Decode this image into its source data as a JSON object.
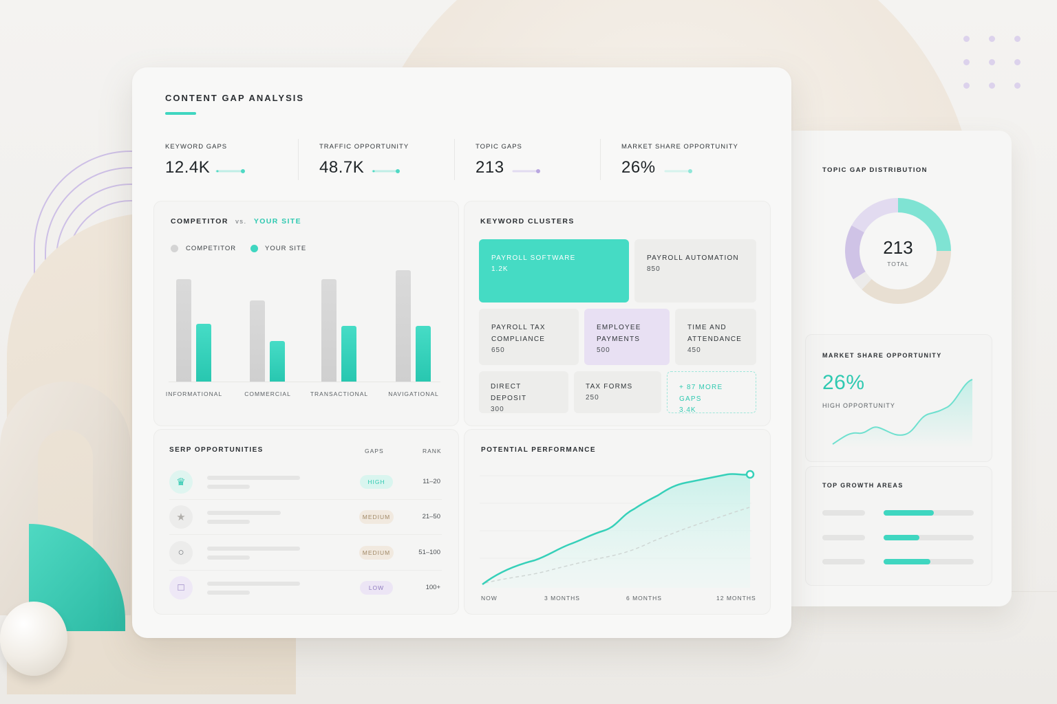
{
  "panel_title": "CONTENT GAP ANALYSIS",
  "kpis": [
    {
      "label": "KEYWORD GAPS",
      "value": "12.4K",
      "color": "#9fe8dc",
      "dot": "#4fd9c4"
    },
    {
      "label": "TRAFFIC OPPORTUNITY",
      "value": "48.7K",
      "color": "#9fe8dc",
      "dot": "#4fd9c4"
    },
    {
      "label": "TOPIC GAPS",
      "value": "213",
      "color": "#dcd2ef",
      "dot": "#b9a7e0"
    },
    {
      "label": "MARKET SHARE OPPORTUNITY",
      "value": "26%",
      "color": "#bfeee6",
      "dot": "#6fe0cf"
    }
  ],
  "competitor_chart": {
    "title_left": "COMPETITOR",
    "title_vs": "vs.",
    "title_right": "YOUR SITE",
    "legend_competitor": "COMPETITOR",
    "legend_your_site": "YOUR SITE",
    "competitor_color": "#d4d4d4",
    "your_site_color": "#3fd6c0"
  },
  "chart_data": {
    "type": "bar",
    "categories": [
      "INFORMATIONAL",
      "COMMERCIAL",
      "TRANSACTIONAL",
      "NAVIGATIONAL"
    ],
    "series": [
      {
        "name": "COMPETITOR",
        "values": [
          145,
          115,
          145,
          157
        ]
      },
      {
        "name": "YOUR SITE",
        "values": [
          82,
          57,
          79,
          79
        ]
      }
    ],
    "ylim": [
      0,
      165
    ]
  },
  "keyword_clusters": {
    "title": "KEYWORD CLUSTERS",
    "tiles": [
      {
        "name": "PAYROLL SOFTWARE",
        "value": "1.2K",
        "style": "teal"
      },
      {
        "name": "PAYROLL AUTOMATION",
        "value": "850",
        "style": "grey"
      },
      {
        "name": "PAYROLL TAX COMPLIANCE",
        "value": "650",
        "style": "grey"
      },
      {
        "name": "EMPLOYEE PAYMENTS",
        "value": "500",
        "style": "lav"
      },
      {
        "name": "TIME AND ATTENDANCE",
        "value": "450",
        "style": "grey"
      },
      {
        "name": "DIRECT DEPOSIT",
        "value": "300",
        "style": "grey"
      },
      {
        "name": "TAX FORMS",
        "value": "250",
        "style": "grey"
      },
      {
        "name": "+ 87 MORE GAPS",
        "value": "3.4K",
        "style": "dash"
      }
    ]
  },
  "serp": {
    "title": "SERP OPPORTUNITIES",
    "col_gaps": "GAPS",
    "col_rank": "RANK",
    "rows": [
      {
        "icon": "crown-icon",
        "gaps": "HIGH",
        "rank": "11–20",
        "badge_bg": "#d9f5ef",
        "badge_fg": "#2fc9b1",
        "icon_bg": "#dff5f0",
        "icon_fg": "#2fc9b1"
      },
      {
        "icon": "star-icon",
        "gaps": "MEDIUM",
        "rank": "21–50",
        "badge_bg": "#f1e9df",
        "badge_fg": "#a08866",
        "icon_bg": "#ececeb",
        "icon_fg": "#b0aeaa"
      },
      {
        "icon": "circle-icon",
        "gaps": "MEDIUM",
        "rank": "51–100",
        "badge_bg": "#f1e9df",
        "badge_fg": "#a08866",
        "icon_bg": "#ececeb",
        "icon_fg": "#6f7378"
      },
      {
        "icon": "square-icon",
        "gaps": "LOW",
        "rank": "100+",
        "badge_bg": "#ece5f5",
        "badge_fg": "#8f7bbf",
        "icon_bg": "#eee8f6",
        "icon_fg": "#8f7bbf"
      }
    ]
  },
  "potential_performance": {
    "title": "POTENTIAL PERFORMANCE",
    "ticks": [
      "NOW",
      "3 MONTHS",
      "6 MONTHS",
      "12 MONTHS"
    ]
  },
  "topic_gap_distribution": {
    "title": "TOPIC GAP DISTRIBUTION",
    "total": "213",
    "total_label": "TOTAL",
    "segments": [
      {
        "value": 0.25,
        "color": "#7fe3d3"
      },
      {
        "value": 0.37,
        "color": "#e8dfd2"
      },
      {
        "value": 0.04,
        "color": "#ecebea"
      },
      {
        "value": 0.17,
        "color": "#cfc3e6"
      },
      {
        "value": 0.17,
        "color": "#e2dbf0"
      }
    ]
  },
  "market_share": {
    "title": "MARKET SHARE OPPORTUNITY",
    "value": "26%",
    "subtitle": "HIGH OPPORTUNITY"
  },
  "top_growth": {
    "title": "TOP GROWTH AREAS",
    "bars": [
      0.56,
      0.4,
      0.52
    ]
  }
}
